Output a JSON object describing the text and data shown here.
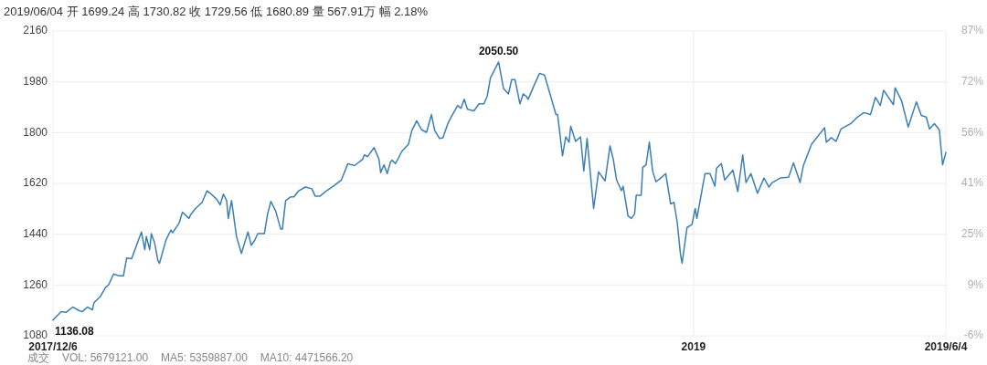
{
  "chart_data": {
    "type": "line",
    "title": "2019/06/04 开 1699.24 高 1730.82 收 1729.56 低 1680.89 量 567.91万 幅 2.18%",
    "x": [
      "2017-12-06",
      "2017-12-11",
      "2017-12-14",
      "2017-12-18",
      "2017-12-22",
      "2017-12-24",
      "2017-12-27",
      "2017-12-30",
      "2017-12-31",
      "2018-01-04",
      "2018-01-07",
      "2018-01-09",
      "2018-01-12",
      "2018-01-15",
      "2018-01-18",
      "2018-01-20",
      "2018-01-23",
      "2018-01-26",
      "2018-01-29",
      "2018-01-31",
      "2018-02-01",
      "2018-02-03",
      "2018-02-04",
      "2018-02-06",
      "2018-02-08",
      "2018-02-09",
      "2018-02-13",
      "2018-02-16",
      "2018-02-17",
      "2018-02-21",
      "2018-02-23",
      "2018-02-27",
      "2018-02-28",
      "2018-03-03",
      "2018-03-07",
      "2018-03-10",
      "2018-03-12",
      "2018-03-16",
      "2018-03-18",
      "2018-03-20",
      "2018-03-22",
      "2018-03-23",
      "2018-03-25",
      "2018-03-28",
      "2018-03-31",
      "2018-04-02",
      "2018-04-04",
      "2018-04-06",
      "2018-04-08",
      "2018-04-10",
      "2018-04-14",
      "2018-04-16",
      "2018-04-18",
      "2018-04-21",
      "2018-04-24",
      "2018-04-25",
      "2018-04-27",
      "2018-04-30",
      "2018-05-02",
      "2018-05-05",
      "2018-05-09",
      "2018-05-13",
      "2018-05-15",
      "2018-05-18",
      "2018-05-22",
      "2018-05-26",
      "2018-05-31",
      "2018-06-04",
      "2018-06-08",
      "2018-06-13",
      "2018-06-14",
      "2018-06-16",
      "2018-06-20",
      "2018-06-23",
      "2018-06-24",
      "2018-06-26",
      "2018-06-28",
      "2018-06-30",
      "2018-07-01",
      "2018-07-03",
      "2018-07-07",
      "2018-07-11",
      "2018-07-13",
      "2018-07-16",
      "2018-07-19",
      "2018-07-22",
      "2018-07-25",
      "2018-07-27",
      "2018-07-30",
      "2018-08-01",
      "2018-08-04",
      "2018-08-06",
      "2018-08-10",
      "2018-08-12",
      "2018-08-14",
      "2018-08-16",
      "2018-08-20",
      "2018-08-23",
      "2018-08-26",
      "2018-08-28",
      "2018-08-30",
      "2018-09-04",
      "2018-09-07",
      "2018-09-10",
      "2018-09-12",
      "2018-09-14",
      "2018-09-17",
      "2018-09-19",
      "2018-09-21",
      "2018-09-22",
      "2018-09-26",
      "2018-09-29",
      "2018-10-02",
      "2018-10-05",
      "2018-10-09",
      "2018-10-10",
      "2018-10-13",
      "2018-10-15",
      "2018-10-17",
      "2018-10-18",
      "2018-10-21",
      "2018-10-24",
      "2018-10-26",
      "2018-10-28",
      "2018-11-01",
      "2018-11-04",
      "2018-11-08",
      "2018-11-11",
      "2018-11-13",
      "2018-11-15",
      "2018-11-18",
      "2018-11-19",
      "2018-11-22",
      "2018-11-24",
      "2018-11-26",
      "2018-11-27",
      "2018-11-30",
      "2018-12-01",
      "2018-12-03",
      "2018-12-05",
      "2018-12-07",
      "2018-12-09",
      "2018-12-12",
      "2018-12-15",
      "2018-12-18",
      "2018-12-20",
      "2018-12-22",
      "2018-12-24",
      "2018-12-25",
      "2018-12-28",
      "2018-12-31",
      "2019-01-02",
      "2019-01-03",
      "2019-01-08",
      "2019-01-11",
      "2019-01-14",
      "2019-01-15",
      "2019-01-18",
      "2019-01-20",
      "2019-01-25",
      "2019-01-28",
      "2019-01-31",
      "2019-02-02",
      "2019-02-05",
      "2019-02-09",
      "2019-02-13",
      "2019-02-16",
      "2019-02-18",
      "2019-02-23",
      "2019-02-28",
      "2019-03-03",
      "2019-03-07",
      "2019-03-09",
      "2019-03-14",
      "2019-03-22",
      "2019-03-23",
      "2019-03-26",
      "2019-03-29",
      "2019-04-01",
      "2019-04-07",
      "2019-04-11",
      "2019-04-15",
      "2019-04-19",
      "2019-04-22",
      "2019-04-25",
      "2019-04-27",
      "2019-05-03",
      "2019-05-04",
      "2019-05-08",
      "2019-05-12",
      "2019-05-17",
      "2019-05-20",
      "2019-05-23",
      "2019-05-25",
      "2019-05-28",
      "2019-05-31",
      "2019-06-02",
      "2019-06-04"
    ],
    "series": [
      {
        "color": "#3b7fb6",
        "values": [
          1136.08,
          1166,
          1163,
          1182,
          1169,
          1166,
          1182,
          1172,
          1197,
          1220,
          1251,
          1261,
          1299,
          1293,
          1293,
          1356,
          1353,
          1401,
          1448,
          1385,
          1432,
          1385,
          1442,
          1410,
          1347,
          1337,
          1420,
          1455,
          1445,
          1480,
          1518,
          1496,
          1509,
          1531,
          1553,
          1594,
          1585,
          1563,
          1544,
          1582,
          1559,
          1496,
          1559,
          1432,
          1372,
          1410,
          1448,
          1401,
          1417,
          1442,
          1442,
          1512,
          1556,
          1521,
          1458,
          1458,
          1559,
          1572,
          1572,
          1594,
          1607,
          1601,
          1575,
          1575,
          1594,
          1610,
          1632,
          1690,
          1683,
          1705,
          1721,
          1715,
          1747,
          1705,
          1658,
          1686,
          1655,
          1696,
          1702,
          1690,
          1734,
          1759,
          1807,
          1842,
          1810,
          1801,
          1864,
          1807,
          1779,
          1782,
          1832,
          1855,
          1896,
          1886,
          1918,
          1883,
          1877,
          1902,
          1902,
          1928,
          1994,
          2050.5,
          1956,
          1937,
          1988,
          1988,
          1902,
          1937,
          1928,
          1918,
          1972,
          2010,
          2004,
          1944,
          1864,
          1864,
          1718,
          1785,
          1766,
          1823,
          1769,
          1785,
          1664,
          1779,
          1531,
          1661,
          1629,
          1753,
          1705,
          1632,
          1594,
          1610,
          1505,
          1496,
          1512,
          1578,
          1578,
          1677,
          1686,
          1766,
          1664,
          1626,
          1639,
          1655,
          1547,
          1553,
          1483,
          1369,
          1337,
          1464,
          1474,
          1531,
          1496,
          1655,
          1655,
          1610,
          1674,
          1690,
          1632,
          1667,
          1591,
          1721,
          1623,
          1655,
          1585,
          1639,
          1607,
          1623,
          1639,
          1642,
          1693,
          1623,
          1683,
          1759,
          1817,
          1766,
          1782,
          1769,
          1813,
          1832,
          1855,
          1871,
          1864,
          1925,
          1896,
          1950,
          1899,
          1959,
          1912,
          1820,
          1909,
          1861,
          1855,
          1813,
          1832,
          1810,
          1686,
          1729.56
        ]
      }
    ],
    "xlim": [
      "2017-12-06",
      "2019-06-04"
    ],
    "xticks": [
      {
        "value": "2017-12-06",
        "label": "2017/12/6"
      },
      {
        "value": "2019-01-01",
        "label": "2019"
      },
      {
        "value": "2019-06-04",
        "label": "2019/6/4"
      }
    ],
    "ylim": [
      1080,
      2160
    ],
    "yticks": [
      1080,
      1260,
      1440,
      1620,
      1800,
      1980,
      2160
    ],
    "y2lim": [
      -6.1,
      87.2
    ],
    "y2ticks": [
      {
        "value": -6.1,
        "label": "-6%"
      },
      {
        "value": 9.45,
        "label": "9%"
      },
      {
        "value": 25.0,
        "label": "25%"
      },
      {
        "value": 40.55,
        "label": "41%"
      },
      {
        "value": 56.1,
        "label": "56%"
      },
      {
        "value": 71.65,
        "label": "72%"
      },
      {
        "value": 87.2,
        "label": "87%"
      }
    ],
    "annotations": [
      {
        "text": "1136.08",
        "x": "2017-12-06",
        "y": 1136.08
      },
      {
        "text": "2050.50",
        "x": "2018-09-04",
        "y": 2050.5
      },
      "成交",
      "VOL: 5679121.00",
      "MA5: 5359887.00",
      "MA10: 4471566.20"
    ],
    "grid": true,
    "marker": "none",
    "line_style": "solid"
  }
}
